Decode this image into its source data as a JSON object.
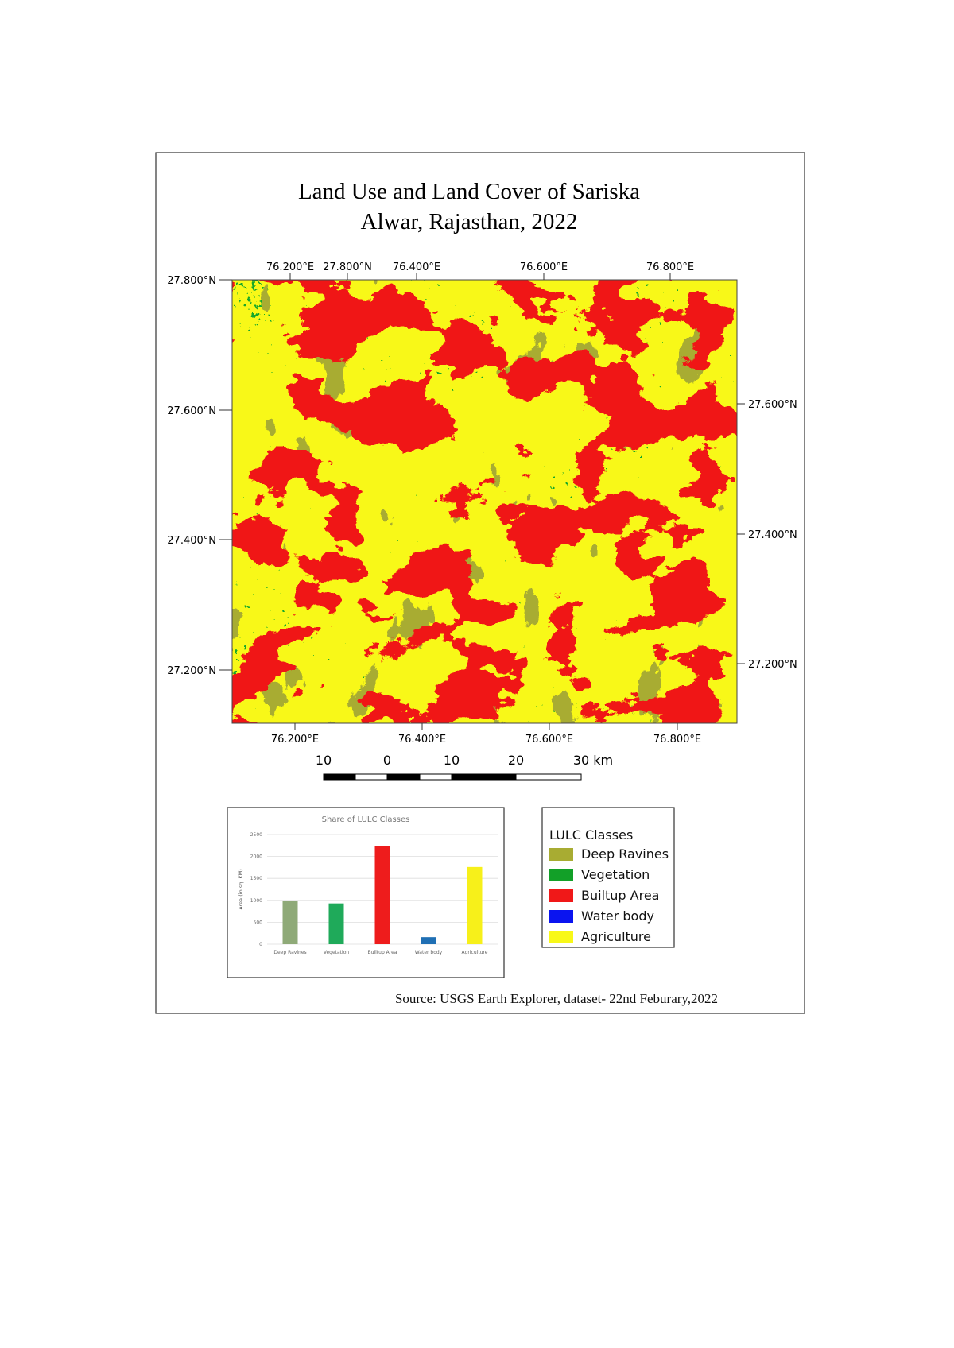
{
  "title": [
    "Land Use and Land Cover of Sariska",
    "Alwar, Rajasthan, 2022"
  ],
  "map": {
    "top_labels": [
      "76.200°E",
      "27.800°N",
      "76.400°E",
      "76.600°E",
      "76.800°E"
    ],
    "bottom_labels": [
      "76.200°E",
      "76.400°E",
      "76.600°E",
      "76.800°E"
    ],
    "left_labels": [
      "27.800°N",
      "27.600°N",
      "27.400°N",
      "27.200°N"
    ],
    "right_labels": [
      "27.600°N",
      "27.400°N",
      "27.200°N"
    ]
  },
  "scale_bar": {
    "labels": [
      "10",
      "0",
      "10",
      "20",
      "30 km"
    ]
  },
  "chart_data": {
    "type": "bar",
    "title": "Share of LULC Classes",
    "y_label": "Area (in sq. KM)",
    "categories": [
      "Deep Ravines",
      "Vegetation",
      "Builtup Area",
      "Water body",
      "Agriculture"
    ],
    "values": [
      980,
      930,
      2240,
      160,
      1760
    ],
    "colors": [
      "#8faa78",
      "#1faa5a",
      "#ee1c1c",
      "#1f6fb4",
      "#f7f01a"
    ],
    "ylim": [
      0,
      2500
    ],
    "yticks": [
      0,
      500,
      1000,
      1500,
      2000,
      2500
    ],
    "grid": true
  },
  "legend": {
    "title": "LULC Classes",
    "items": [
      {
        "label": "Deep Ravines",
        "color": "#a8ac32"
      },
      {
        "label": "Vegetation",
        "color": "#12a028"
      },
      {
        "label": "Builtup Area",
        "color": "#f01818"
      },
      {
        "label": "Water body",
        "color": "#0a14f0"
      },
      {
        "label": "Agriculture",
        "color": "#f8f818"
      }
    ]
  },
  "source": "Source: USGS Earth Explorer, dataset- 22nd Feburary,2022"
}
